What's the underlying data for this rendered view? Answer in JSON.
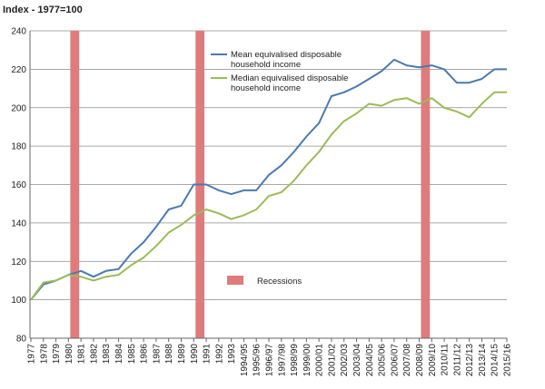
{
  "chart_data": {
    "type": "line",
    "title": "Index - 1977=100",
    "ylim": [
      80,
      240
    ],
    "yticks": [
      80,
      100,
      120,
      140,
      160,
      180,
      200,
      220,
      240
    ],
    "grid": "horizontal",
    "categories": [
      "1977",
      "1978",
      "1979",
      "1980",
      "1981",
      "1982",
      "1983",
      "1984",
      "1985",
      "1986",
      "1987",
      "1988",
      "1989",
      "1990",
      "1991",
      "1992",
      "1993",
      "1994/95",
      "1995/96",
      "1996/97",
      "1997/98",
      "1998/99",
      "1999/00",
      "2000/01",
      "2001/02",
      "2002/03",
      "2003/04",
      "2004/05",
      "2005/06",
      "2006/07",
      "2007/08",
      "2008/09",
      "2009/10",
      "2010/11",
      "2011/12",
      "2012/13",
      "2013/14",
      "2014/15",
      "2015/16"
    ],
    "series": [
      {
        "name": "Mean equivalised disposable household income",
        "color": "#4a7ab0",
        "values": [
          100,
          108,
          110,
          113,
          115,
          112,
          115,
          116,
          124,
          130,
          138,
          147,
          149,
          160,
          160,
          157,
          155,
          157,
          157,
          165,
          170,
          177,
          185,
          192,
          206,
          208,
          211,
          215,
          219,
          225,
          222,
          221,
          222,
          220,
          213,
          213,
          215,
          220,
          220
        ]
      },
      {
        "name": "Median equivalised disposable household income",
        "color": "#9bbb59",
        "values": [
          100,
          109,
          110,
          113,
          112,
          110,
          112,
          113,
          118,
          122,
          128,
          135,
          139,
          144,
          147,
          145,
          142,
          144,
          147,
          154,
          156,
          162,
          170,
          177,
          186,
          193,
          197,
          202,
          201,
          204,
          205,
          202,
          205,
          200,
          198,
          195,
          202,
          208,
          208
        ]
      }
    ],
    "recessions": [
      {
        "start": "1980",
        "end": "1981"
      },
      {
        "start": "1990",
        "end": "1991"
      },
      {
        "start": "2008/09",
        "end": "2009/10"
      }
    ],
    "recession_label": "Recessions",
    "recession_color": "#e07b7b",
    "legend_lines": [
      [
        "Mean equivalised disposable",
        "household income"
      ],
      [
        "Median equivalised disposable",
        "household income"
      ]
    ]
  }
}
